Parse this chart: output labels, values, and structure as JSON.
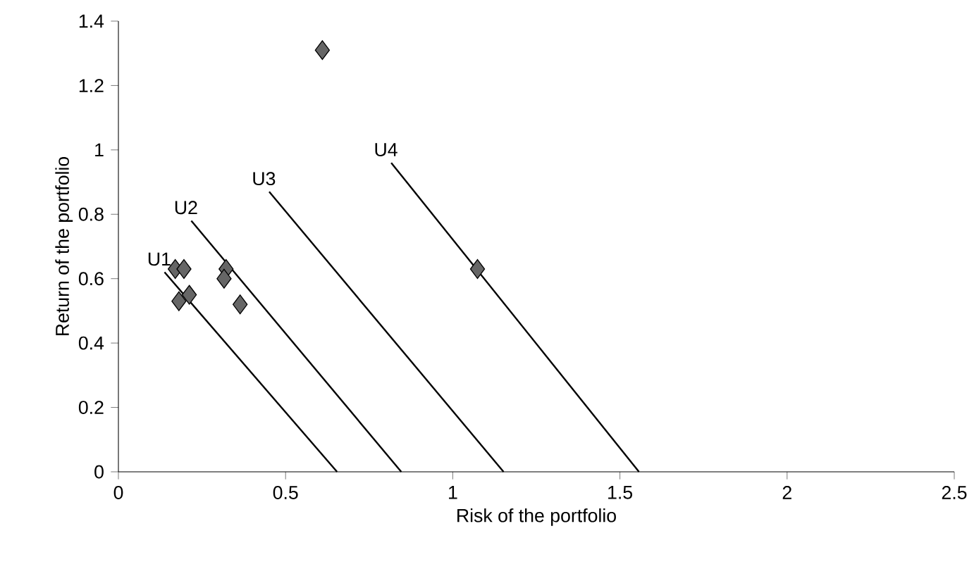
{
  "chart_data": {
    "type": "scatter",
    "xlabel": "Risk of the portfolio",
    "ylabel": "Return of the portfolio",
    "xlim": [
      0,
      2.5
    ],
    "xticks": [
      0,
      0.5,
      1,
      1.5,
      2,
      2.5
    ],
    "ylim": [
      0,
      1.4
    ],
    "yticks": [
      0,
      0.2,
      0.4,
      0.6,
      0.8,
      1,
      1.2,
      1.4
    ],
    "grid": false,
    "legend": false,
    "marker": "diamond",
    "series": [
      {
        "color": "#666666",
        "x": [
          0.61,
          0.17,
          0.196,
          0.322,
          0.316,
          0.212,
          0.181,
          0.364,
          1.074
        ],
        "values": [
          1.31,
          0.63,
          0.63,
          0.63,
          0.6,
          0.55,
          0.53,
          0.52,
          0.63
        ]
      },
      {
        "type": "line",
        "name": "U1",
        "color": "#000000",
        "marker": "none",
        "x": [
          0.138,
          0.654
        ],
        "values": [
          0.62,
          0
        ]
      },
      {
        "type": "line",
        "name": "U2",
        "color": "#000000",
        "marker": "none",
        "x": [
          0.218,
          0.846
        ],
        "values": [
          0.78,
          0
        ]
      },
      {
        "type": "line",
        "name": "U3",
        "color": "#000000",
        "marker": "none",
        "x": [
          0.451,
          1.152
        ],
        "values": [
          0.87,
          0
        ]
      },
      {
        "type": "line",
        "name": "U4",
        "color": "#000000",
        "marker": "none",
        "x": [
          0.816,
          1.557
        ],
        "values": [
          0.96,
          0
        ]
      }
    ]
  }
}
